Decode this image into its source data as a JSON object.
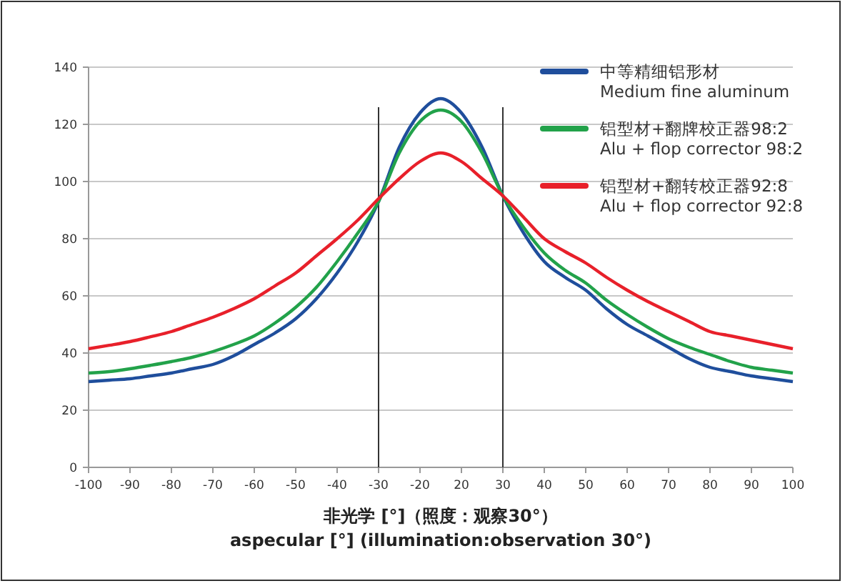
{
  "chart_data": {
    "type": "line",
    "xlabel": "非光学 [°]（照度：观察30°）\naspecular [°] (illumination:observation 30°)",
    "categories": [
      "-100",
      null,
      "-90",
      null,
      "-80",
      null,
      "-70",
      null,
      "-60",
      null,
      "-50",
      null,
      "-40",
      null,
      "-30",
      null,
      "-20",
      null,
      "20",
      null,
      "30",
      null,
      "40",
      null,
      "50",
      null,
      "60",
      null,
      "70",
      null,
      "80",
      null,
      "90",
      null,
      "100"
    ],
    "series": [
      {
        "name": "中等精细铝形材\nMedium fine aluminum",
        "color": "#1f4e9c",
        "values": [
          30,
          30.5,
          31,
          32,
          33,
          34.5,
          36,
          39,
          43,
          47,
          52,
          59,
          68,
          79,
          93,
          112,
          124,
          129,
          124,
          112,
          95,
          82,
          72,
          66.5,
          62,
          55.5,
          50,
          46,
          42,
          38,
          35,
          33.5,
          32,
          31,
          30
        ]
      },
      {
        "name": "铝型材+翻牌校正器98:2\nAlu + flop corrector 98:2",
        "color": "#22a24a",
        "values": [
          33,
          33.5,
          34.5,
          35.7,
          37,
          38.5,
          40.5,
          43,
          46,
          50.5,
          56,
          63,
          72,
          82,
          93,
          110,
          121,
          125,
          121,
          110,
          95,
          84,
          75,
          69,
          64.5,
          58.5,
          53.5,
          49,
          45,
          42,
          39.5,
          37,
          35,
          34,
          33
        ]
      },
      {
        "name": "铝型材+翻转校正器92:8\nAlu + flop corrector 92:8",
        "color": "#e8202a",
        "values": [
          41.5,
          42.7,
          44,
          45.7,
          47.5,
          50,
          52.5,
          55.5,
          59,
          63.5,
          68,
          74,
          80,
          86.5,
          94,
          101,
          107,
          110,
          107,
          101,
          95,
          87.5,
          80,
          75.5,
          71.5,
          66.5,
          62,
          58,
          54.5,
          51,
          47.5,
          46,
          44.5,
          43,
          41.5
        ]
      }
    ],
    "ylim": [
      0,
      140
    ],
    "yticks": [
      0,
      20,
      40,
      60,
      80,
      100,
      120,
      140
    ],
    "grid": "y",
    "legend": "top right",
    "marker": "none",
    "line_style": "solid",
    "ref_lines": [
      {
        "axis": "x",
        "value": "-30",
        "color": "#333333"
      },
      {
        "axis": "x",
        "value": "30",
        "color": "#333333"
      }
    ]
  }
}
